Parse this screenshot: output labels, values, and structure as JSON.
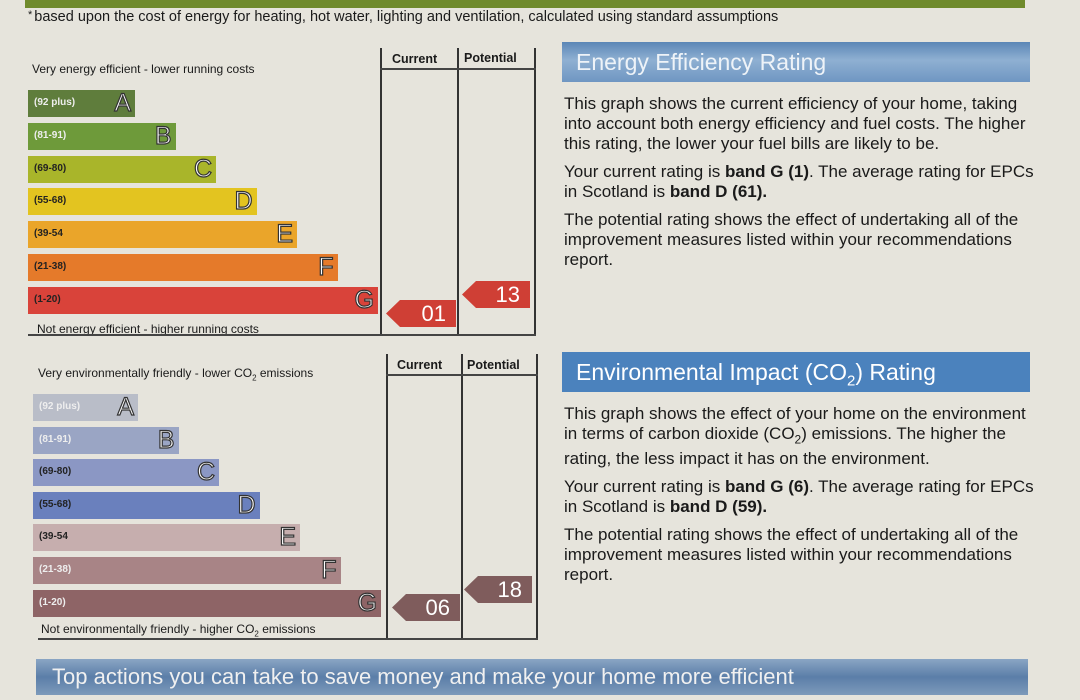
{
  "footnote": {
    "asterisk": "*",
    "text": "based upon the cost of energy for heating, hot water, lighting and ventilation, calculated using standard assumptions"
  },
  "energy_chart": {
    "top_label": "Very energy efficient - lower running costs",
    "bottom_label": "Not energy efficient - higher running costs",
    "col_current": "Current",
    "col_potential": "Potential",
    "bands": [
      {
        "range": "(92 plus)",
        "letter": "A",
        "color": "#5f7d3c"
      },
      {
        "range": "(81-91)",
        "letter": "B",
        "color": "#6e9a3a"
      },
      {
        "range": "(69-80)",
        "letter": "C",
        "color": "#a9b52a"
      },
      {
        "range": "(55-68)",
        "letter": "D",
        "color": "#e3c420"
      },
      {
        "range": "(39-54",
        "letter": "E",
        "color": "#eaa52a"
      },
      {
        "range": "(21-38)",
        "letter": "F",
        "color": "#e57a2a"
      },
      {
        "range": "(1-20)",
        "letter": "G",
        "color": "#d9433a"
      }
    ],
    "current_value": "01",
    "potential_value": "13",
    "arrow_color": "#cf3f35"
  },
  "co2_chart": {
    "top_label_main": "Very environmentally friendly - lower CO",
    "top_label_sub": "2",
    "top_label_end": " emissions",
    "bottom_label_main": "Not environmentally friendly - higher CO",
    "bottom_label_sub": "2",
    "bottom_label_end": " emissions",
    "col_current": "Current",
    "col_potential": "Potential",
    "bands": [
      {
        "range": "(92 plus)",
        "letter": "A",
        "color": "#b9bdc8"
      },
      {
        "range": "(81-91)",
        "letter": "B",
        "color": "#9aa5c4"
      },
      {
        "range": "(69-80)",
        "letter": "C",
        "color": "#8b97c4"
      },
      {
        "range": "(55-68)",
        "letter": "D",
        "color": "#6a80bd"
      },
      {
        "range": "(39-54",
        "letter": "E",
        "color": "#c6aeae"
      },
      {
        "range": "(21-38)",
        "letter": "F",
        "color": "#a88486"
      },
      {
        "range": "(1-20)",
        "letter": "G",
        "color": "#8e6466"
      }
    ],
    "current_value": "06",
    "potential_value": "18",
    "arrow_color": "#7f5c5c"
  },
  "energy_info": {
    "title": "Energy Efficiency Rating",
    "p1": "This graph shows the current efficiency of your home, taking into account both energy efficiency and fuel costs. The higher this rating, the lower your fuel bills are likely to be.",
    "p2_a": "Your current rating is ",
    "p2_b": "band G (1)",
    "p2_c": ". The average rating for EPCs in Scotland is ",
    "p2_d": "band D (61).",
    "p3": "The potential rating shows the effect of undertaking all of the improvement measures listed within your recommendations report."
  },
  "co2_info": {
    "title_main": "Environmental Impact (CO",
    "title_sub": "2",
    "title_end": ") Rating",
    "p1_main": "This graph shows the effect of your home on the environment in terms of carbon dioxide (CO",
    "p1_sub": "2",
    "p1_end": ") emissions. The higher the rating, the less impact it has on the environment.",
    "p2_a": "Your current rating is ",
    "p2_b": "band G (6)",
    "p2_c": ". The average rating for EPCs in Scotland is ",
    "p2_d": "band D (59).",
    "p3": "The potential rating shows the effect of undertaking all of the improvement measures listed within your recommendations report."
  },
  "bottom_banner": "Top actions you can take to save money and make your home more efficient"
}
